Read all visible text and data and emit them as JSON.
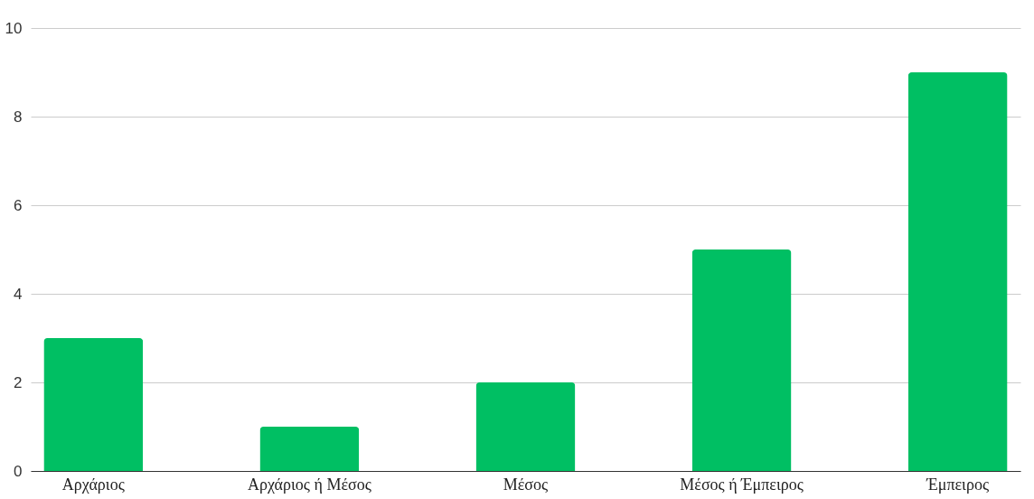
{
  "chart_data": {
    "type": "bar",
    "categories": [
      "Αρχάριος",
      "Αρχάριος ή Μέσος",
      "Μέσος",
      "Μέσος ή Έμπειρος",
      "Έμπειρος"
    ],
    "values": [
      3,
      1,
      2,
      5,
      9
    ],
    "color": "#00bf63",
    "ylim": [
      0,
      10
    ],
    "yticks": [
      0,
      2,
      4,
      6,
      8,
      10
    ],
    "grid": "y"
  }
}
